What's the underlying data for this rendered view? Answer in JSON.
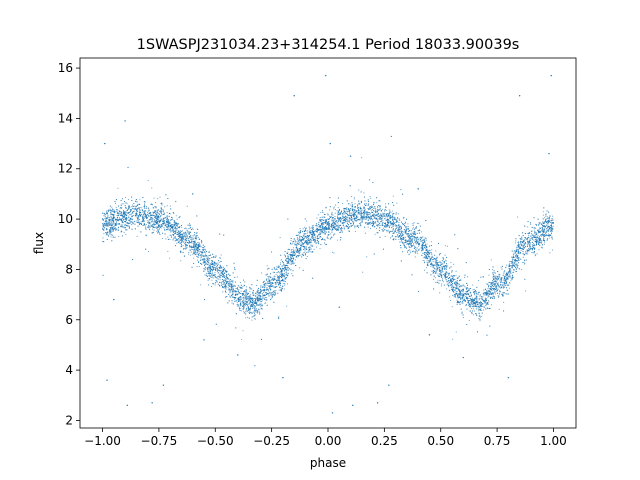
{
  "chart_data": {
    "type": "scatter",
    "title": "1SWASPJ231034.23+314254.1 Period 18033.90039s",
    "xlabel": "phase",
    "ylabel": "flux",
    "xlim": [
      -1.1,
      1.1
    ],
    "ylim": [
      1.7,
      16.4
    ],
    "xticks": [
      -1.0,
      -0.75,
      -0.5,
      -0.25,
      0.0,
      0.25,
      0.5,
      0.75,
      1.0
    ],
    "xtick_labels": [
      "−1.00",
      "−0.75",
      "−0.50",
      "−0.25",
      "0.00",
      "0.25",
      "0.50",
      "0.75",
      "1.00"
    ],
    "yticks": [
      2,
      4,
      6,
      8,
      10,
      12,
      14,
      16
    ],
    "ytick_labels": [
      "2",
      "4",
      "6",
      "8",
      "10",
      "12",
      "14",
      "16"
    ],
    "grid": false,
    "point_color": "#1f77b4",
    "phase_range": [
      -1.0,
      1.0
    ],
    "light_curve": {
      "phase": [
        -1.0,
        -0.85,
        -0.75,
        -0.62,
        -0.5,
        -0.4,
        -0.33,
        -0.25,
        -0.1,
        0.0,
        0.15,
        0.25,
        0.38,
        0.5,
        0.6,
        0.67,
        0.75,
        0.9,
        1.0
      ],
      "flux": [
        9.8,
        10.2,
        10.0,
        9.2,
        8.0,
        7.0,
        6.6,
        7.4,
        9.1,
        9.8,
        10.2,
        10.0,
        9.2,
        8.0,
        7.0,
        6.6,
        7.4,
        9.1,
        9.8
      ]
    },
    "scatter_sigma": 0.28,
    "outliers": [
      {
        "x": -0.89,
        "y": 2.6
      },
      {
        "x": 0.11,
        "y": 2.6
      },
      {
        "x": -0.73,
        "y": 3.4
      },
      {
        "x": 0.27,
        "y": 3.4
      },
      {
        "x": -0.99,
        "y": 13.0
      },
      {
        "x": 0.01,
        "y": 13.0
      },
      {
        "x": -0.9,
        "y": 13.9
      },
      {
        "x": 0.1,
        "y": 12.5
      },
      {
        "x": -0.15,
        "y": 14.9
      },
      {
        "x": 0.85,
        "y": 14.9
      },
      {
        "x": -0.01,
        "y": 15.7
      },
      {
        "x": 0.99,
        "y": 15.7
      },
      {
        "x": -0.98,
        "y": 3.6
      },
      {
        "x": 0.02,
        "y": 2.3
      },
      {
        "x": 0.98,
        "y": 12.6
      },
      {
        "x": -0.6,
        "y": 11.0
      },
      {
        "x": 0.4,
        "y": 11.2
      },
      {
        "x": -0.4,
        "y": 4.6
      },
      {
        "x": 0.6,
        "y": 4.5
      },
      {
        "x": -0.2,
        "y": 3.7
      },
      {
        "x": 0.8,
        "y": 3.7
      },
      {
        "x": -0.78,
        "y": 2.7
      },
      {
        "x": 0.22,
        "y": 2.7
      },
      {
        "x": -0.55,
        "y": 5.2
      },
      {
        "x": 0.45,
        "y": 5.4
      },
      {
        "x": -0.95,
        "y": 6.8
      },
      {
        "x": 0.05,
        "y": 6.5
      }
    ]
  }
}
